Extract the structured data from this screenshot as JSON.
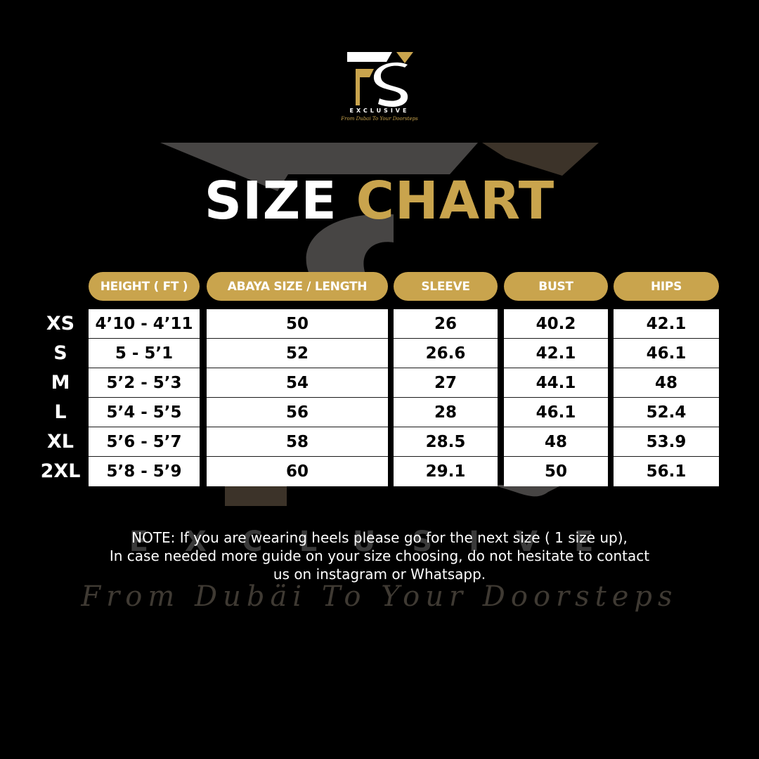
{
  "brand": {
    "word": "EXCLUSIVE",
    "tagline": "From Dubai To Your Doorsteps",
    "watermark_word": "EXCLUSIVE",
    "watermark_tagline": "From Dubäi To Your Doorsteps",
    "colors": {
      "gold": "#c9a44d",
      "background": "#000000",
      "watermark": "#3a3a3a"
    }
  },
  "title": {
    "part1": "SIZE",
    "part2": "CHART"
  },
  "columns": [
    "HEIGHT ( FT )",
    "ABAYA SIZE / LENGTH",
    "SLEEVE",
    "BUST",
    "HIPS"
  ],
  "sizes": [
    "XS",
    "S",
    "M",
    "L",
    "XL",
    "2XL"
  ],
  "rows": [
    [
      "4’10 - 4’11",
      "50",
      "26",
      "40.2",
      "42.1"
    ],
    [
      "5 - 5’1",
      "52",
      "26.6",
      "42.1",
      "46.1"
    ],
    [
      "5’2 - 5’3",
      "54",
      "27",
      "44.1",
      "48"
    ],
    [
      "5’4 - 5’5",
      "56",
      "28",
      "46.1",
      "52.4"
    ],
    [
      "5’6 - 5’7",
      "58",
      "28.5",
      "48",
      "53.9"
    ],
    [
      "5’8 - 5’9",
      "60",
      "29.1",
      "50",
      "56.1"
    ]
  ],
  "note": {
    "line1": "NOTE: If you are wearing heels please go for the next size ( 1 size up),",
    "line2": "In case needed more guide on your size choosing, do not hesitate to contact",
    "line3": "us on instagram or Whatsapp."
  }
}
